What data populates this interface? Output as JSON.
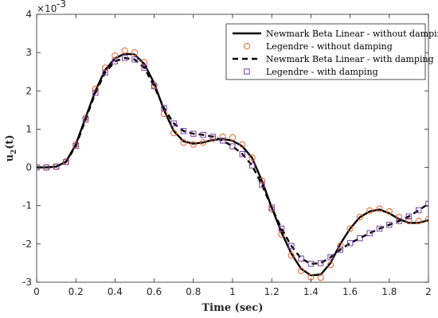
{
  "chart_data": {
    "type": "line",
    "title": "",
    "xlabel": "Time (sec)",
    "ylabel_base": "u",
    "ylabel_sub": "2",
    "ylabel_suffix": "(t)",
    "y_exponent_base": "×10",
    "y_exponent": "-3",
    "xlim": [
      0,
      2
    ],
    "ylim": [
      -3,
      4
    ],
    "x_ticks": [
      0,
      0.2,
      0.4,
      0.6,
      0.8,
      1,
      1.2,
      1.4,
      1.6,
      1.8,
      2
    ],
    "x_tick_labels": [
      "0",
      "0.2",
      "0.4",
      "0.6",
      "0.8",
      "1",
      "1.2",
      "1.4",
      "1.6",
      "1.8",
      "2"
    ],
    "y_ticks": [
      -3,
      -2,
      -1,
      0,
      1,
      2,
      3,
      4
    ],
    "y_tick_labels": [
      "-3",
      "-2",
      "-1",
      "0",
      "1",
      "2",
      "3",
      "4"
    ],
    "y_unit_note": "values in units of 1e-3",
    "grid": false,
    "legend_position": "top-right",
    "x": [
      0,
      0.05,
      0.1,
      0.15,
      0.2,
      0.25,
      0.3,
      0.35,
      0.4,
      0.45,
      0.5,
      0.55,
      0.6,
      0.65,
      0.7,
      0.75,
      0.8,
      0.85,
      0.9,
      0.95,
      1.0,
      1.05,
      1.1,
      1.15,
      1.2,
      1.25,
      1.3,
      1.35,
      1.4,
      1.45,
      1.5,
      1.55,
      1.6,
      1.65,
      1.7,
      1.75,
      1.8,
      1.85,
      1.9,
      1.95,
      2.0
    ],
    "series": [
      {
        "name": "Newmark Beta Linear - without damping",
        "color": "#000000",
        "style": "solid-line",
        "values": [
          0,
          0,
          0.02,
          0.15,
          0.6,
          1.3,
          2.0,
          2.55,
          2.85,
          2.97,
          2.95,
          2.7,
          2.2,
          1.5,
          0.95,
          0.68,
          0.62,
          0.65,
          0.72,
          0.74,
          0.7,
          0.55,
          0.25,
          -0.35,
          -1.05,
          -1.7,
          -2.25,
          -2.65,
          -2.82,
          -2.8,
          -2.5,
          -2.0,
          -1.6,
          -1.3,
          -1.15,
          -1.1,
          -1.2,
          -1.35,
          -1.45,
          -1.45,
          -1.38
        ]
      },
      {
        "name": "Legendre - without damping",
        "color": "#E8632B",
        "style": "circle-markers",
        "values": [
          0,
          0,
          0.02,
          0.15,
          0.6,
          1.3,
          2.05,
          2.6,
          2.92,
          3.05,
          3.0,
          2.75,
          2.15,
          1.4,
          0.9,
          0.65,
          0.6,
          0.65,
          0.75,
          0.8,
          0.78,
          0.6,
          0.25,
          -0.35,
          -1.1,
          -1.75,
          -2.3,
          -2.7,
          -2.87,
          -2.88,
          -2.55,
          -2.05,
          -1.6,
          -1.3,
          -1.13,
          -1.08,
          -1.15,
          -1.3,
          -1.4,
          -1.4,
          -1.35
        ]
      },
      {
        "name": "Newmark Beta Linear - with damping",
        "color": "#000000",
        "style": "dashed-line",
        "values": [
          0,
          0,
          0.02,
          0.14,
          0.56,
          1.25,
          1.95,
          2.48,
          2.77,
          2.86,
          2.82,
          2.6,
          2.12,
          1.55,
          1.15,
          0.95,
          0.88,
          0.85,
          0.8,
          0.7,
          0.55,
          0.35,
          0.05,
          -0.45,
          -1.05,
          -1.6,
          -2.05,
          -2.38,
          -2.52,
          -2.5,
          -2.35,
          -2.15,
          -1.98,
          -1.85,
          -1.72,
          -1.6,
          -1.5,
          -1.4,
          -1.28,
          -1.12,
          -0.95
        ]
      },
      {
        "name": "Legendre - with damping",
        "color": "#7B3FA0",
        "style": "square-markers",
        "values": [
          0,
          0,
          0.02,
          0.14,
          0.56,
          1.25,
          1.95,
          2.48,
          2.77,
          2.86,
          2.82,
          2.6,
          2.12,
          1.55,
          1.15,
          0.95,
          0.88,
          0.85,
          0.8,
          0.7,
          0.55,
          0.35,
          0.05,
          -0.45,
          -1.05,
          -1.6,
          -2.05,
          -2.38,
          -2.52,
          -2.5,
          -2.35,
          -2.15,
          -1.98,
          -1.85,
          -1.72,
          -1.6,
          -1.5,
          -1.4,
          -1.28,
          -1.12,
          -0.95
        ]
      }
    ]
  }
}
